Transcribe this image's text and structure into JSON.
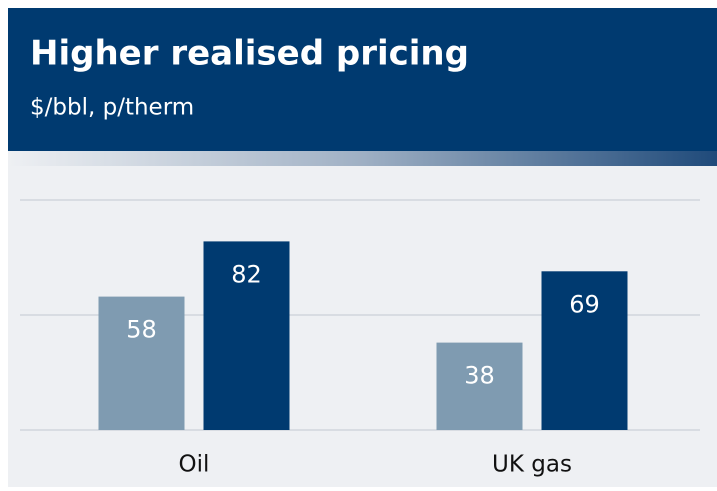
{
  "chart_data": {
    "type": "bar",
    "title": "Higher realised pricing",
    "subtitle": "$/bbl, p/therm",
    "categories": [
      "Oil",
      "UK gas"
    ],
    "series": [
      {
        "color": "#7f9bb1",
        "values": [
          58,
          38
        ]
      },
      {
        "color": "#003a70",
        "values": [
          82,
          69
        ]
      }
    ],
    "ylim": [
      0,
      100
    ],
    "yticks": [
      0,
      50,
      100
    ],
    "grid": true
  }
}
